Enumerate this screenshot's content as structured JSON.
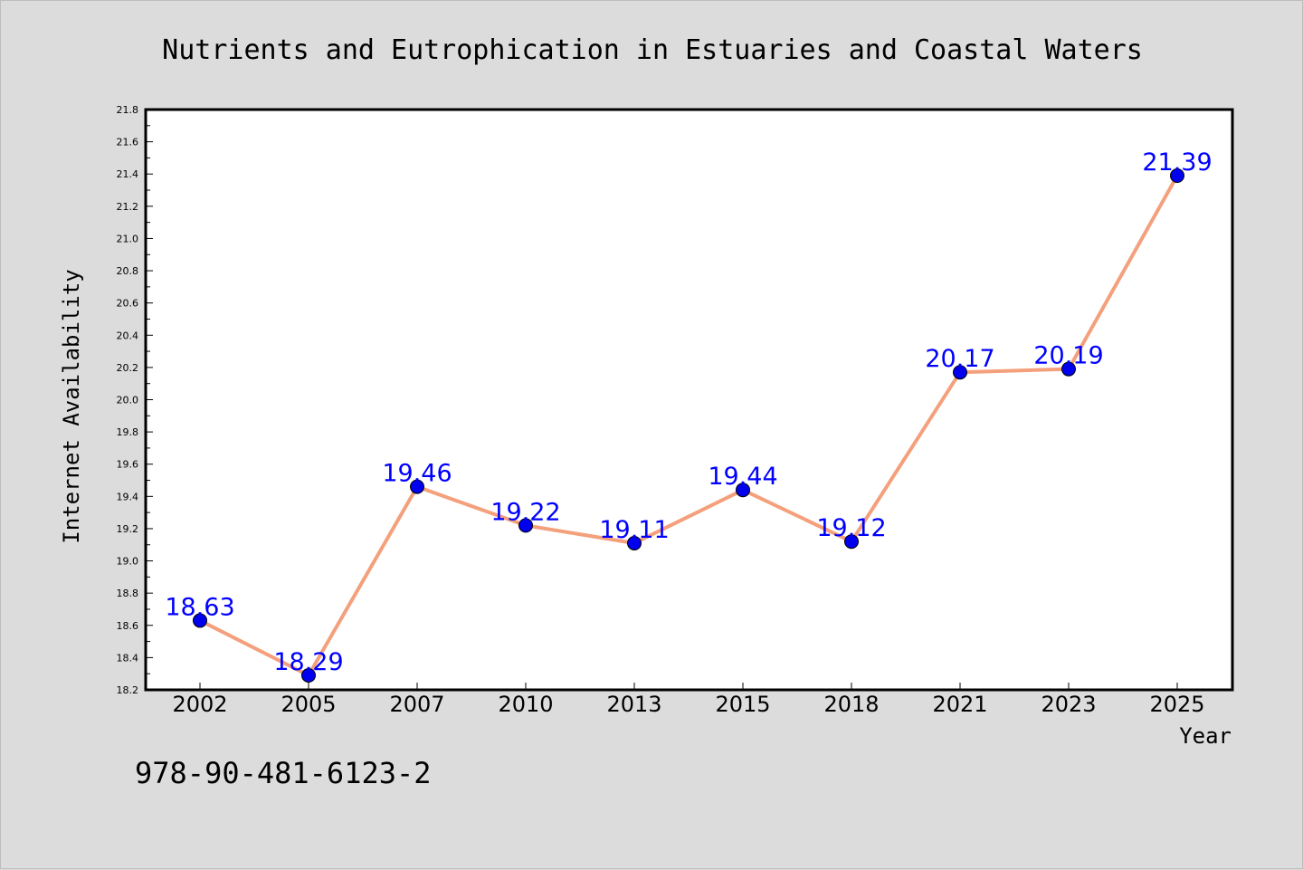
{
  "chart_data": {
    "type": "line",
    "title": "Nutrients and Eutrophication in Estuaries and Coastal Waters",
    "xlabel": "Year",
    "ylabel": "Internet Availability",
    "categories": [
      "2002",
      "2005",
      "2007",
      "2010",
      "2013",
      "2015",
      "2018",
      "2021",
      "2023",
      "2025"
    ],
    "series": [
      {
        "values": [
          18.63,
          18.29,
          19.46,
          19.22,
          19.11,
          19.44,
          19.12,
          20.17,
          20.19,
          21.39
        ],
        "value_labels": [
          "18.63",
          "18.29",
          "19.46",
          "19.22",
          "19.11",
          "19.44",
          "19.12",
          "20.17",
          "20.19",
          "21.39"
        ]
      }
    ],
    "ylim": [
      18.2,
      21.8
    ],
    "yticks": [
      "18.2",
      "18.4",
      "18.6",
      "18.8",
      "19.0",
      "19.2",
      "19.4",
      "19.6",
      "19.8",
      "20.0",
      "20.2",
      "20.4",
      "20.6",
      "20.8",
      "21.0",
      "21.2",
      "21.4",
      "21.6",
      "21.8"
    ],
    "grid": false,
    "legend": "none",
    "colors": {
      "line": "#f4a07c",
      "marker": "#0000ee",
      "label": "#0000ff",
      "background": "#dcdcdc",
      "plot_background": "#ffffff"
    }
  },
  "annotation": {
    "isbn": "978-90-481-6123-2"
  }
}
